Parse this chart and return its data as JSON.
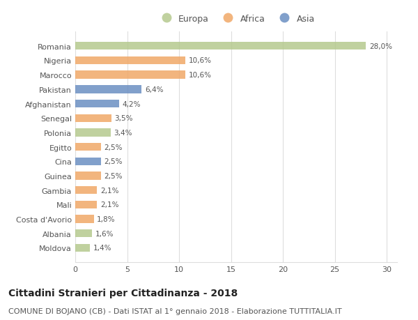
{
  "categories": [
    "Romania",
    "Nigeria",
    "Marocco",
    "Pakistan",
    "Afghanistan",
    "Senegal",
    "Polonia",
    "Egitto",
    "Cina",
    "Guinea",
    "Gambia",
    "Mali",
    "Costa d'Avorio",
    "Albania",
    "Moldova"
  ],
  "values": [
    28.0,
    10.6,
    10.6,
    6.4,
    4.2,
    3.5,
    3.4,
    2.5,
    2.5,
    2.5,
    2.1,
    2.1,
    1.8,
    1.6,
    1.4
  ],
  "labels": [
    "28,0%",
    "10,6%",
    "10,6%",
    "6,4%",
    "4,2%",
    "3,5%",
    "3,4%",
    "2,5%",
    "2,5%",
    "2,5%",
    "2,1%",
    "2,1%",
    "1,8%",
    "1,6%",
    "1,4%"
  ],
  "continents": [
    "Europa",
    "Africa",
    "Africa",
    "Asia",
    "Asia",
    "Africa",
    "Europa",
    "Africa",
    "Asia",
    "Africa",
    "Africa",
    "Africa",
    "Africa",
    "Europa",
    "Europa"
  ],
  "colors": {
    "Europa": "#b5c98e",
    "Africa": "#f0a868",
    "Asia": "#6b8fc2"
  },
  "legend_labels": [
    "Europa",
    "Africa",
    "Asia"
  ],
  "xlim": [
    0,
    31
  ],
  "xticks": [
    0,
    5,
    10,
    15,
    20,
    25,
    30
  ],
  "title": "Cittadini Stranieri per Cittadinanza - 2018",
  "subtitle": "COMUNE DI BOJANO (CB) - Dati ISTAT al 1° gennaio 2018 - Elaborazione TUTTITALIA.IT",
  "title_fontsize": 10,
  "subtitle_fontsize": 8,
  "bar_height": 0.55,
  "background_color": "#ffffff",
  "grid_color": "#dddddd"
}
